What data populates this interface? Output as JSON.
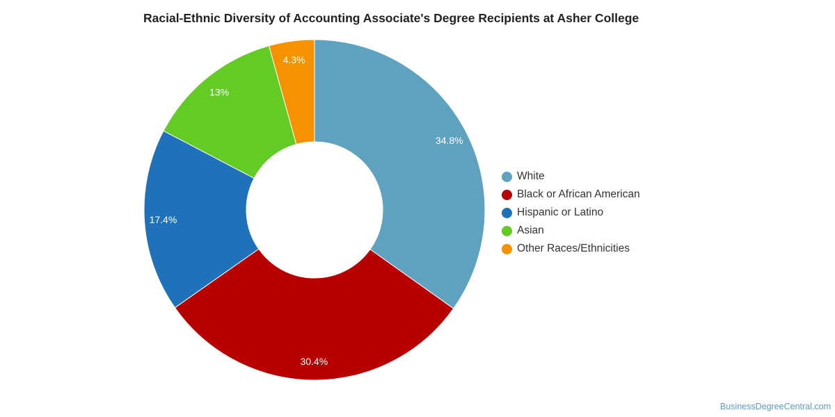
{
  "chart_data": {
    "type": "pie",
    "title": "Racial-Ethnic Diversity of Accounting Associate's Degree Recipients at Asher College",
    "donut": true,
    "legend_position": "right",
    "slices": [
      {
        "label": "White",
        "value": 34.8,
        "display": "34.8%",
        "color": "#5ea2c0"
      },
      {
        "label": "Black or African American",
        "value": 30.4,
        "display": "30.4%",
        "color": "#b80000"
      },
      {
        "label": "Hispanic or Latino",
        "value": 17.4,
        "display": "17.4%",
        "color": "#1f72ba"
      },
      {
        "label": "Asian",
        "value": 13,
        "display": "13%",
        "color": "#62cc24"
      },
      {
        "label": "Other Races/Ethnicities",
        "value": 4.3,
        "display": "4.3%",
        "color": "#f59200"
      }
    ]
  },
  "source": "BusinessDegreeCentral.com"
}
